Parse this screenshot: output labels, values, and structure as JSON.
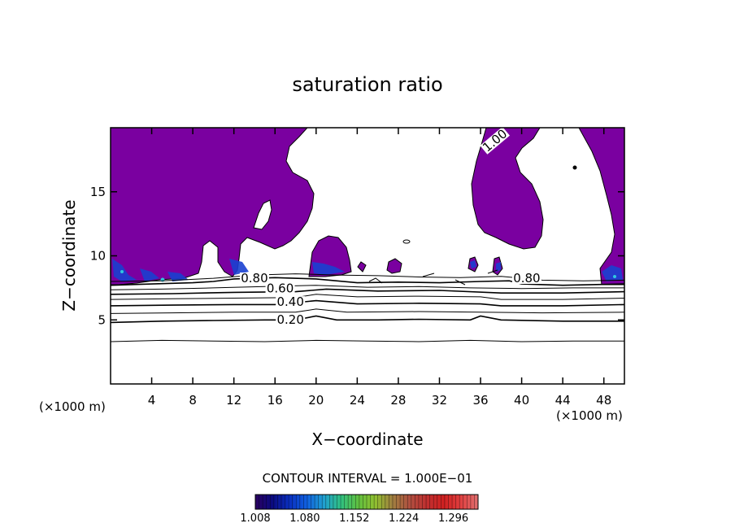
{
  "chart_data": {
    "type": "contour",
    "title": "saturation ratio",
    "xlabel": "X−coordinate",
    "ylabel": "Z−coordinate",
    "x_unit_label": "(×1000 m)",
    "y_unit_label": "(×1000 m)",
    "xlim": [
      0,
      50
    ],
    "ylim": [
      0,
      20
    ],
    "x_ticks": [
      4,
      8,
      12,
      16,
      20,
      24,
      28,
      32,
      36,
      40,
      44,
      48
    ],
    "x_tick_labels": [
      "4",
      "8",
      "12",
      "16",
      "20",
      "24",
      "28",
      "32",
      "36",
      "40",
      "44",
      "48"
    ],
    "y_ticks": [
      5,
      10,
      15
    ],
    "y_tick_labels": [
      "5",
      "10",
      "15"
    ],
    "contour_interval_text": "CONTOUR INTERVAL = 1.000E−01",
    "contour_lines": [
      {
        "level": 0.1,
        "points": [
          [
            0,
            3.3
          ],
          [
            5,
            3.4
          ],
          [
            10,
            3.35
          ],
          [
            15,
            3.3
          ],
          [
            20,
            3.4
          ],
          [
            25,
            3.35
          ],
          [
            30,
            3.3
          ],
          [
            35,
            3.4
          ],
          [
            40,
            3.3
          ],
          [
            45,
            3.35
          ],
          [
            50,
            3.35
          ]
        ]
      },
      {
        "level": 0.2,
        "label": "0.20",
        "label_at": [
          17.5,
          4.75
        ],
        "points": [
          [
            0,
            4.8
          ],
          [
            5,
            4.9
          ],
          [
            10,
            4.95
          ],
          [
            15,
            5.0
          ],
          [
            18,
            5.0
          ],
          [
            20,
            5.3
          ],
          [
            22,
            5.0
          ],
          [
            26,
            5.0
          ],
          [
            30,
            5.05
          ],
          [
            35,
            5.0
          ],
          [
            36,
            5.3
          ],
          [
            38,
            5.0
          ],
          [
            44,
            4.9
          ],
          [
            50,
            4.9
          ]
        ]
      },
      {
        "level": 0.3,
        "points": [
          [
            0,
            5.5
          ],
          [
            6,
            5.55
          ],
          [
            12,
            5.6
          ],
          [
            18,
            5.6
          ],
          [
            20,
            5.85
          ],
          [
            23,
            5.6
          ],
          [
            30,
            5.65
          ],
          [
            36,
            5.6
          ],
          [
            42,
            5.55
          ],
          [
            50,
            5.6
          ]
        ]
      },
      {
        "level": 0.4,
        "label": "0.40",
        "label_at": [
          17.5,
          6.15
        ],
        "points": [
          [
            0,
            6.1
          ],
          [
            6,
            6.15
          ],
          [
            12,
            6.2
          ],
          [
            16,
            6.2
          ],
          [
            20,
            6.5
          ],
          [
            24,
            6.25
          ],
          [
            30,
            6.3
          ],
          [
            36,
            6.25
          ],
          [
            38,
            6.1
          ],
          [
            44,
            6.1
          ],
          [
            50,
            6.2
          ]
        ]
      },
      {
        "level": 0.5,
        "points": [
          [
            0,
            6.6
          ],
          [
            6,
            6.65
          ],
          [
            12,
            6.7
          ],
          [
            18,
            6.75
          ],
          [
            20,
            7.0
          ],
          [
            24,
            6.8
          ],
          [
            30,
            6.85
          ],
          [
            36,
            6.8
          ],
          [
            38,
            6.6
          ],
          [
            44,
            6.6
          ],
          [
            50,
            6.7
          ]
        ]
      },
      {
        "level": 0.6,
        "label": "0.60",
        "label_at": [
          16.5,
          7.2
        ],
        "points": [
          [
            0,
            7.0
          ],
          [
            6,
            7.05
          ],
          [
            12,
            7.15
          ],
          [
            18,
            7.2
          ],
          [
            21,
            7.4
          ],
          [
            26,
            7.25
          ],
          [
            32,
            7.3
          ],
          [
            38,
            7.1
          ],
          [
            44,
            7.1
          ],
          [
            50,
            7.2
          ]
        ]
      },
      {
        "level": 0.7,
        "points": [
          [
            0,
            7.35
          ],
          [
            5,
            7.4
          ],
          [
            10,
            7.5
          ],
          [
            15,
            7.6
          ],
          [
            20,
            7.7
          ],
          [
            25,
            7.55
          ],
          [
            30,
            7.6
          ],
          [
            35,
            7.5
          ],
          [
            40,
            7.45
          ],
          [
            45,
            7.5
          ],
          [
            50,
            7.5
          ]
        ]
      },
      {
        "level": 0.8,
        "label": "0.80",
        "label_at": [
          14,
          8.0
        ],
        "points": [
          [
            0,
            7.7
          ],
          [
            4,
            7.8
          ],
          [
            8,
            7.9
          ],
          [
            10,
            8.0
          ],
          [
            12,
            8.2
          ],
          [
            16,
            8.3
          ],
          [
            20,
            8.2
          ],
          [
            24,
            7.9
          ],
          [
            28,
            7.95
          ],
          [
            32,
            7.9
          ],
          [
            36,
            8.0
          ],
          [
            38.8,
            8.05
          ],
          [
            40,
            7.8
          ],
          [
            44,
            7.7
          ],
          [
            50,
            7.8
          ]
        ]
      },
      {
        "level": 0.8,
        "label": "0.80",
        "label_at": [
          40.5,
          8.0
        ],
        "points": []
      },
      {
        "level": 0.9,
        "points": [
          [
            0,
            8.0
          ],
          [
            5,
            8.05
          ],
          [
            10,
            8.25
          ],
          [
            14,
            8.5
          ],
          [
            18,
            8.6
          ],
          [
            22,
            8.5
          ],
          [
            26,
            8.45
          ],
          [
            30,
            8.35
          ],
          [
            34,
            8.3
          ],
          [
            38,
            8.4
          ],
          [
            42,
            8.1
          ],
          [
            46,
            8.05
          ],
          [
            50,
            8.1
          ]
        ]
      },
      {
        "level": 1.0,
        "label": "1.00",
        "label_at": [
          37.6,
          18.8
        ],
        "points": []
      }
    ],
    "shaded_region": {
      "level_min": 1.0,
      "fill": "#7a00a0"
    },
    "colorbar": {
      "min": 1.008,
      "max": 1.332,
      "tick_values": [
        1.008,
        1.08,
        1.152,
        1.224,
        1.296
      ],
      "tick_labels": [
        "1.008",
        "1.080",
        "1.152",
        "1.224",
        "1.296"
      ],
      "colors": [
        "#2a0060",
        "#0a0a80",
        "#0a30c0",
        "#1060e0",
        "#20a0d0",
        "#30c080",
        "#60c040",
        "#90c030",
        "#a08040",
        "#b05040",
        "#c03030",
        "#d02020",
        "#e04040",
        "#e07070"
      ]
    }
  }
}
